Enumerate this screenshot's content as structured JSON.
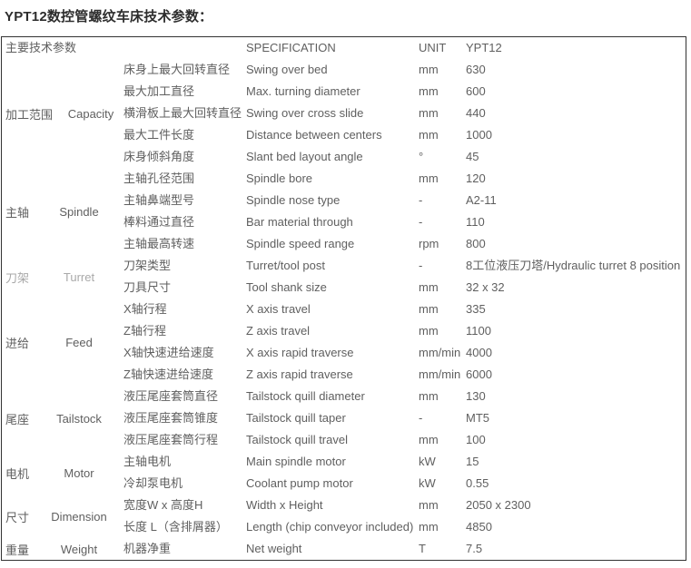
{
  "page_title": "YPT12数控管螺纹车床技术参数：",
  "table": {
    "header": {
      "main": "主要技术参数",
      "spec": "SPECIFICATION",
      "unit": "UNIT",
      "model": "YPT12"
    },
    "groups": [
      {
        "cn": "加工范围",
        "en": "Capacity",
        "muted": false,
        "rows": [
          {
            "cn": "床身上最大回转直径",
            "spec": "Swing over bed",
            "unit": "mm",
            "value": "630"
          },
          {
            "cn": "最大加工直径",
            "spec": "Max. turning diameter",
            "unit": "mm",
            "value": "600"
          },
          {
            "cn": "横滑板上最大回转直径",
            "spec": "Swing over cross slide",
            "unit": "mm",
            "value": "440"
          },
          {
            "cn": "最大工件长度",
            "spec": "Distance between centers",
            "unit": "mm",
            "value": "1000"
          },
          {
            "cn": "床身倾斜角度",
            "spec": "Slant bed layout angle",
            "unit": "°",
            "value": "45"
          }
        ]
      },
      {
        "cn": "主轴",
        "en": "Spindle",
        "muted": false,
        "rows": [
          {
            "cn": "主轴孔径范围",
            "spec": "Spindle bore",
            "unit": "mm",
            "value": "120"
          },
          {
            "cn": "主轴鼻端型号",
            "spec": "Spindle nose type",
            "unit": "-",
            "value": "A2-11"
          },
          {
            "cn": "棒料通过直径",
            "spec": "Bar material through",
            "unit": "-",
            "value": "110"
          },
          {
            "cn": "主轴最高转速",
            "spec": "Spindle speed range",
            "unit": "rpm",
            "value": "800"
          }
        ]
      },
      {
        "cn": "刀架",
        "en": "Turret",
        "muted": true,
        "rows": [
          {
            "cn": "刀架类型",
            "spec": "Turret/tool post",
            "unit": "-",
            "value": "8工位液压刀塔/Hydraulic turret 8 position"
          },
          {
            "cn": "刀具尺寸",
            "spec": "Tool shank size",
            "unit": "mm",
            "value": "32 x 32"
          }
        ]
      },
      {
        "cn": "进给",
        "en": "Feed",
        "muted": false,
        "rows": [
          {
            "cn": "X轴行程",
            "spec": "X axis travel",
            "unit": "mm",
            "value": "335"
          },
          {
            "cn": "Z轴行程",
            "spec": "Z axis travel",
            "unit": "mm",
            "value": "1100"
          },
          {
            "cn": "X轴快速进给速度",
            "spec": "X axis rapid traverse",
            "unit": "mm/min",
            "value": "4000"
          },
          {
            "cn": "Z轴快速进给速度",
            "spec": "Z axis rapid traverse",
            "unit": "mm/min",
            "value": "6000"
          }
        ]
      },
      {
        "cn": "尾座",
        "en": "Tailstock",
        "muted": false,
        "rows": [
          {
            "cn": "液压尾座套筒直径",
            "spec": "Tailstock quill diameter",
            "unit": "mm",
            "value": "130"
          },
          {
            "cn": "液压尾座套筒锥度",
            "spec": "Tailstock quill taper",
            "unit": "-",
            "value": "MT5"
          },
          {
            "cn": "液压尾座套筒行程",
            "spec": "Tailstock quill travel",
            "unit": "mm",
            "value": "100"
          }
        ]
      },
      {
        "cn": "电机",
        "en": "Motor",
        "muted": false,
        "rows": [
          {
            "cn": "主轴电机",
            "spec": "Main spindle motor",
            "unit": "kW",
            "value": "15"
          },
          {
            "cn": "冷却泵电机",
            "spec": "Coolant pump motor",
            "unit": "kW",
            "value": "0.55"
          }
        ]
      },
      {
        "cn": "尺寸",
        "en": "Dimension",
        "muted": false,
        "rows": [
          {
            "cn": "宽度W x 高度H",
            "spec": "Width x Height",
            "unit": "mm",
            "value": "2050 x 2300"
          },
          {
            "cn": "长度 L（含排屑器）",
            "spec": "Length (chip conveyor included)",
            "unit": "mm",
            "value": "4850"
          }
        ]
      },
      {
        "cn": "重量",
        "en": "Weight",
        "muted": false,
        "rows": [
          {
            "cn": "机器净重",
            "spec": "Net weight",
            "unit": "T",
            "value": "7.5"
          }
        ]
      }
    ]
  },
  "colors": {
    "text": "#5f5f5f",
    "muted_text": "#a9a9a9",
    "title": "#2d2d2d",
    "border": "#333333"
  }
}
